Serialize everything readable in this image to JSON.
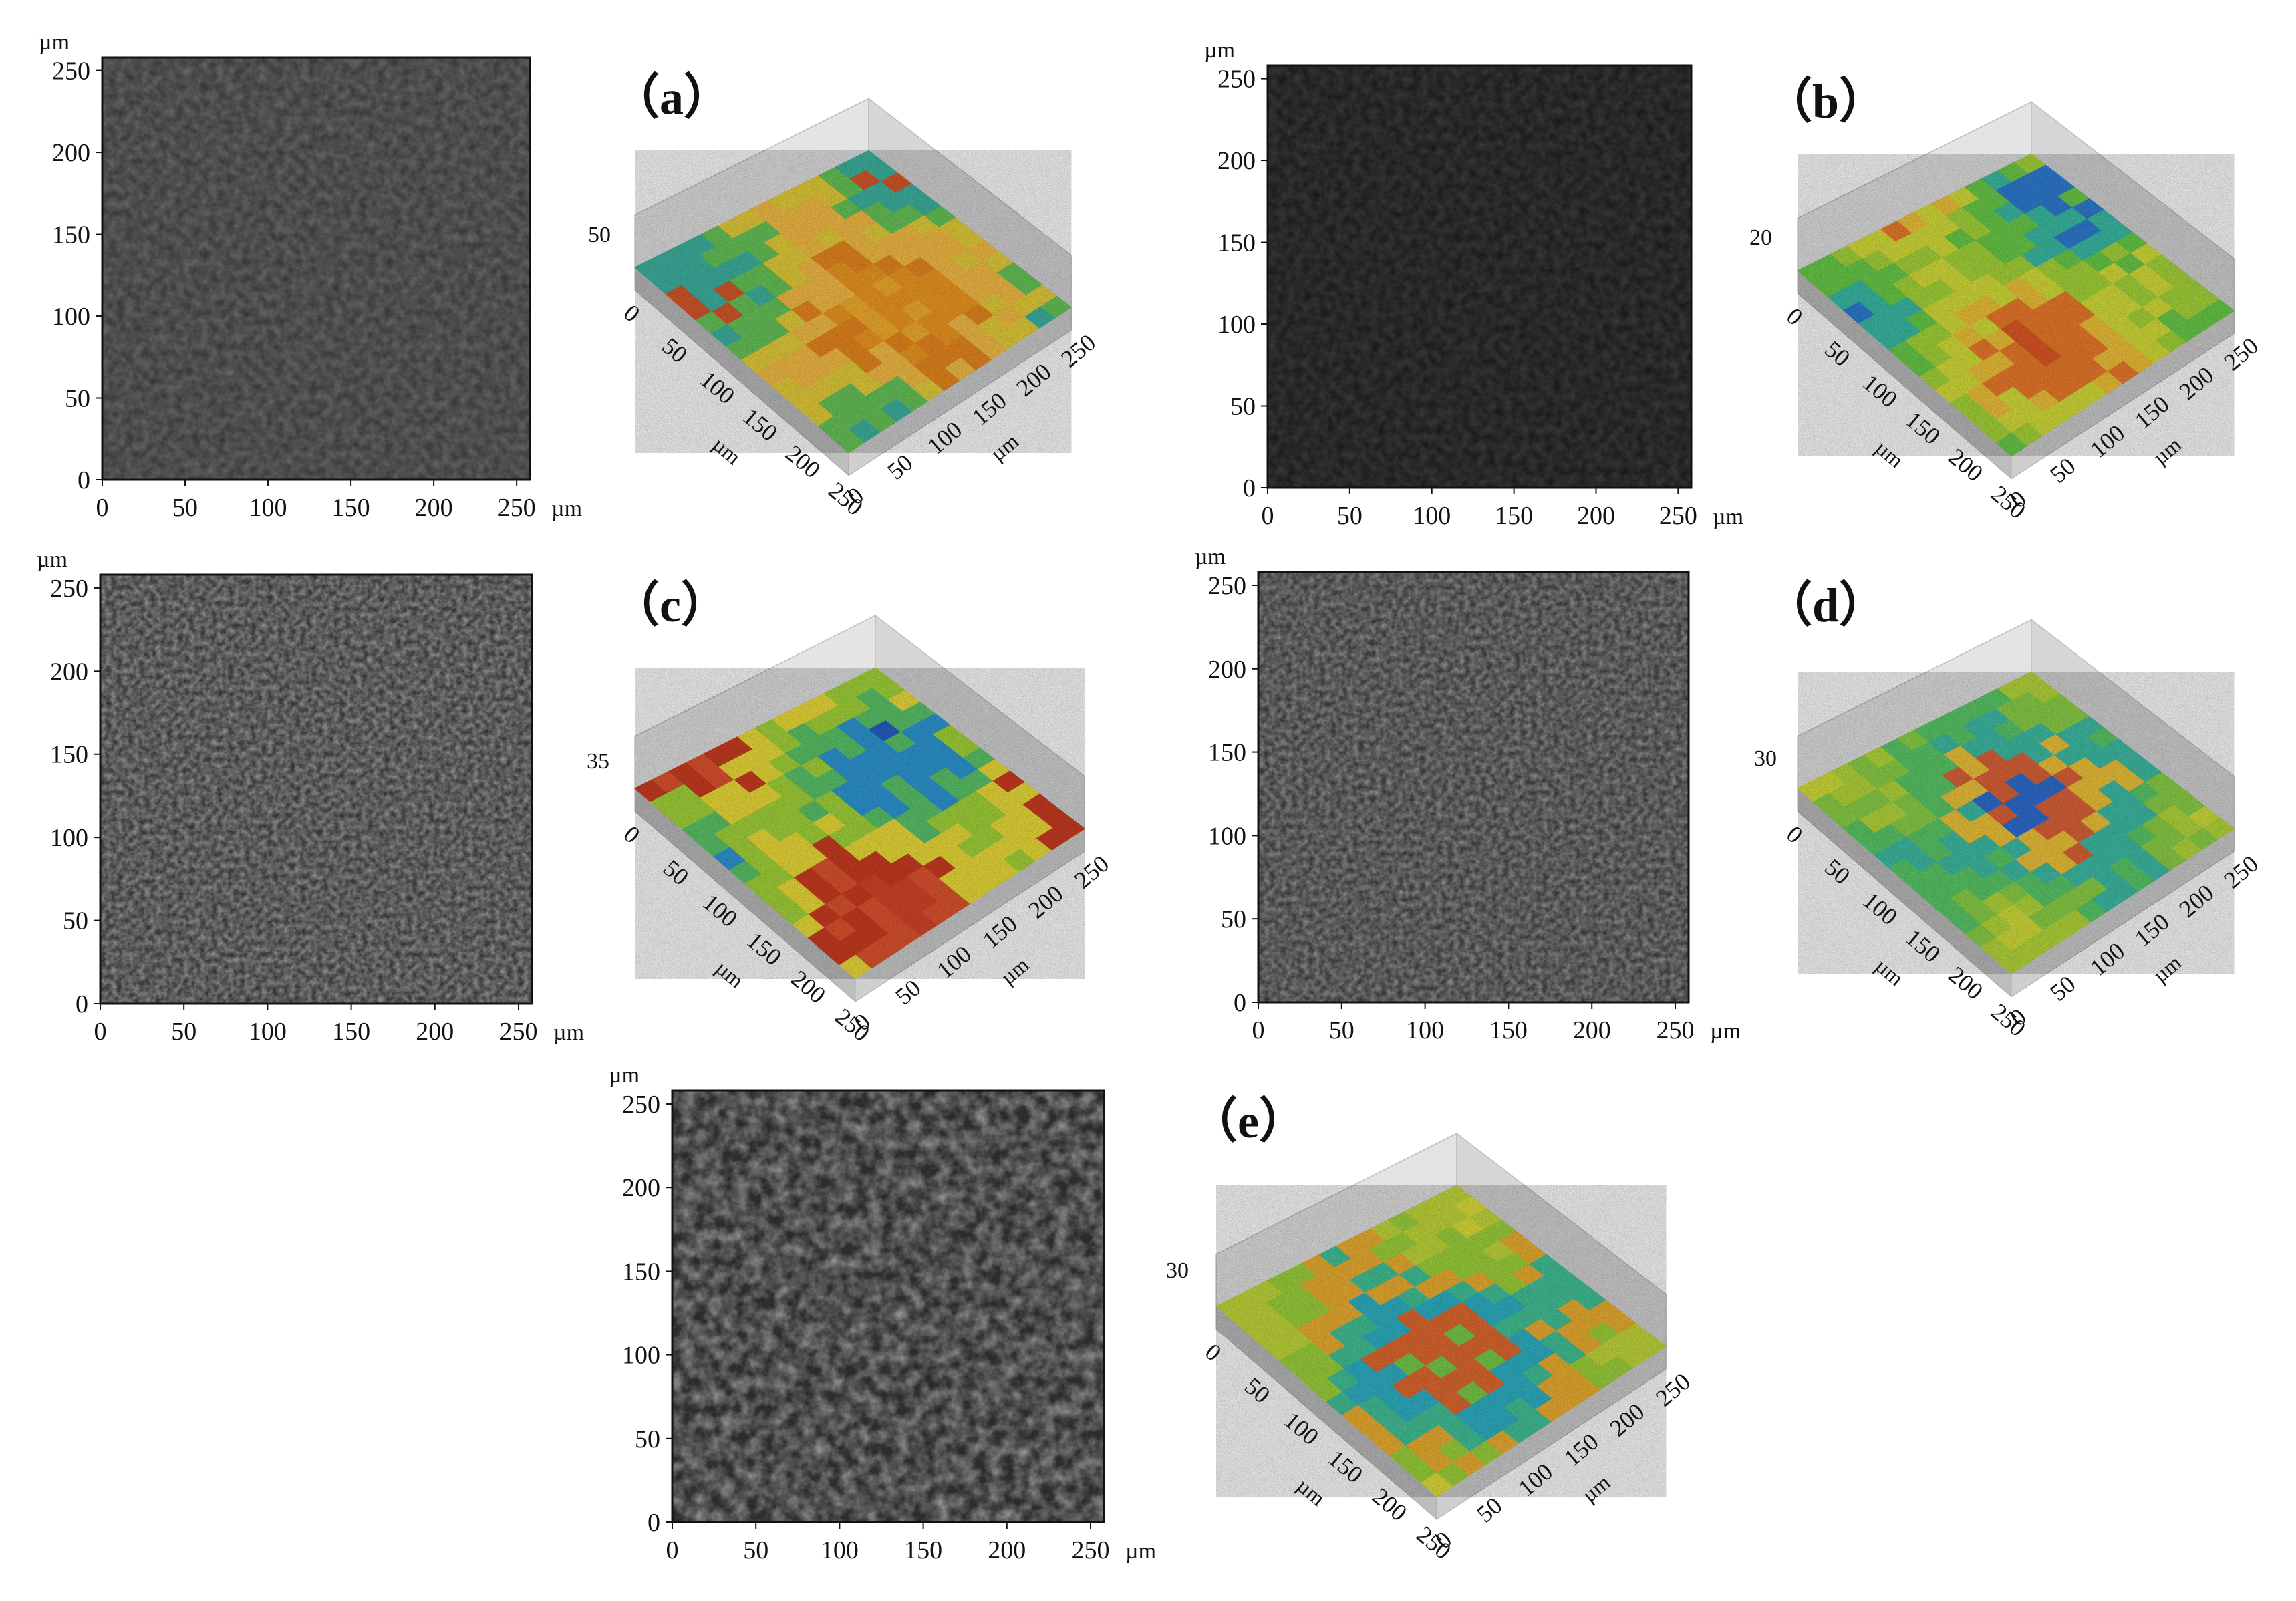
{
  "figure": {
    "axis_unit": "µm",
    "tick_values": [
      0,
      50,
      100,
      150,
      200,
      250
    ],
    "panels": [
      {
        "label": "（a）",
        "height_label": "50",
        "palette": [
          "#f7b12f",
          "#f39b22",
          "#ec8a1f",
          "#f9c046",
          "#e9d13b",
          "#69c85a",
          "#3fb6a4",
          "#d95a2b"
        ],
        "sem_tone": "dark"
      },
      {
        "label": "（b）",
        "height_label": "20",
        "palette": [
          "#e35a24",
          "#f07d2c",
          "#f4c53a",
          "#d9e23a",
          "#a9d93b",
          "#6bcf4a",
          "#3bbfa8",
          "#2f7fd6"
        ],
        "sem_tone": "very-dark"
      },
      {
        "label": "（c）",
        "height_label": "35",
        "palette": [
          "#d8472a",
          "#e3552f",
          "#ce3d22",
          "#f0e03a",
          "#a6d83a",
          "#5cc86b",
          "#2e9ad8",
          "#2563c9"
        ],
        "sem_tone": "medium"
      },
      {
        "label": "（d）",
        "height_label": "30",
        "palette": [
          "#d6e23a",
          "#b8dc3c",
          "#8ed448",
          "#5ccc6a",
          "#3fc0a8",
          "#f2c63a",
          "#e0643a",
          "#2f6fd4"
        ],
        "sem_tone": "medium"
      },
      {
        "label": "（e）",
        "height_label": "30",
        "palette": [
          "#e2e23a",
          "#c6dc3b",
          "#a0d63c",
          "#f0b232",
          "#44c59a",
          "#2fb4c8",
          "#e46b30",
          "#7acf4b"
        ],
        "sem_tone": "medium-dark"
      }
    ]
  }
}
